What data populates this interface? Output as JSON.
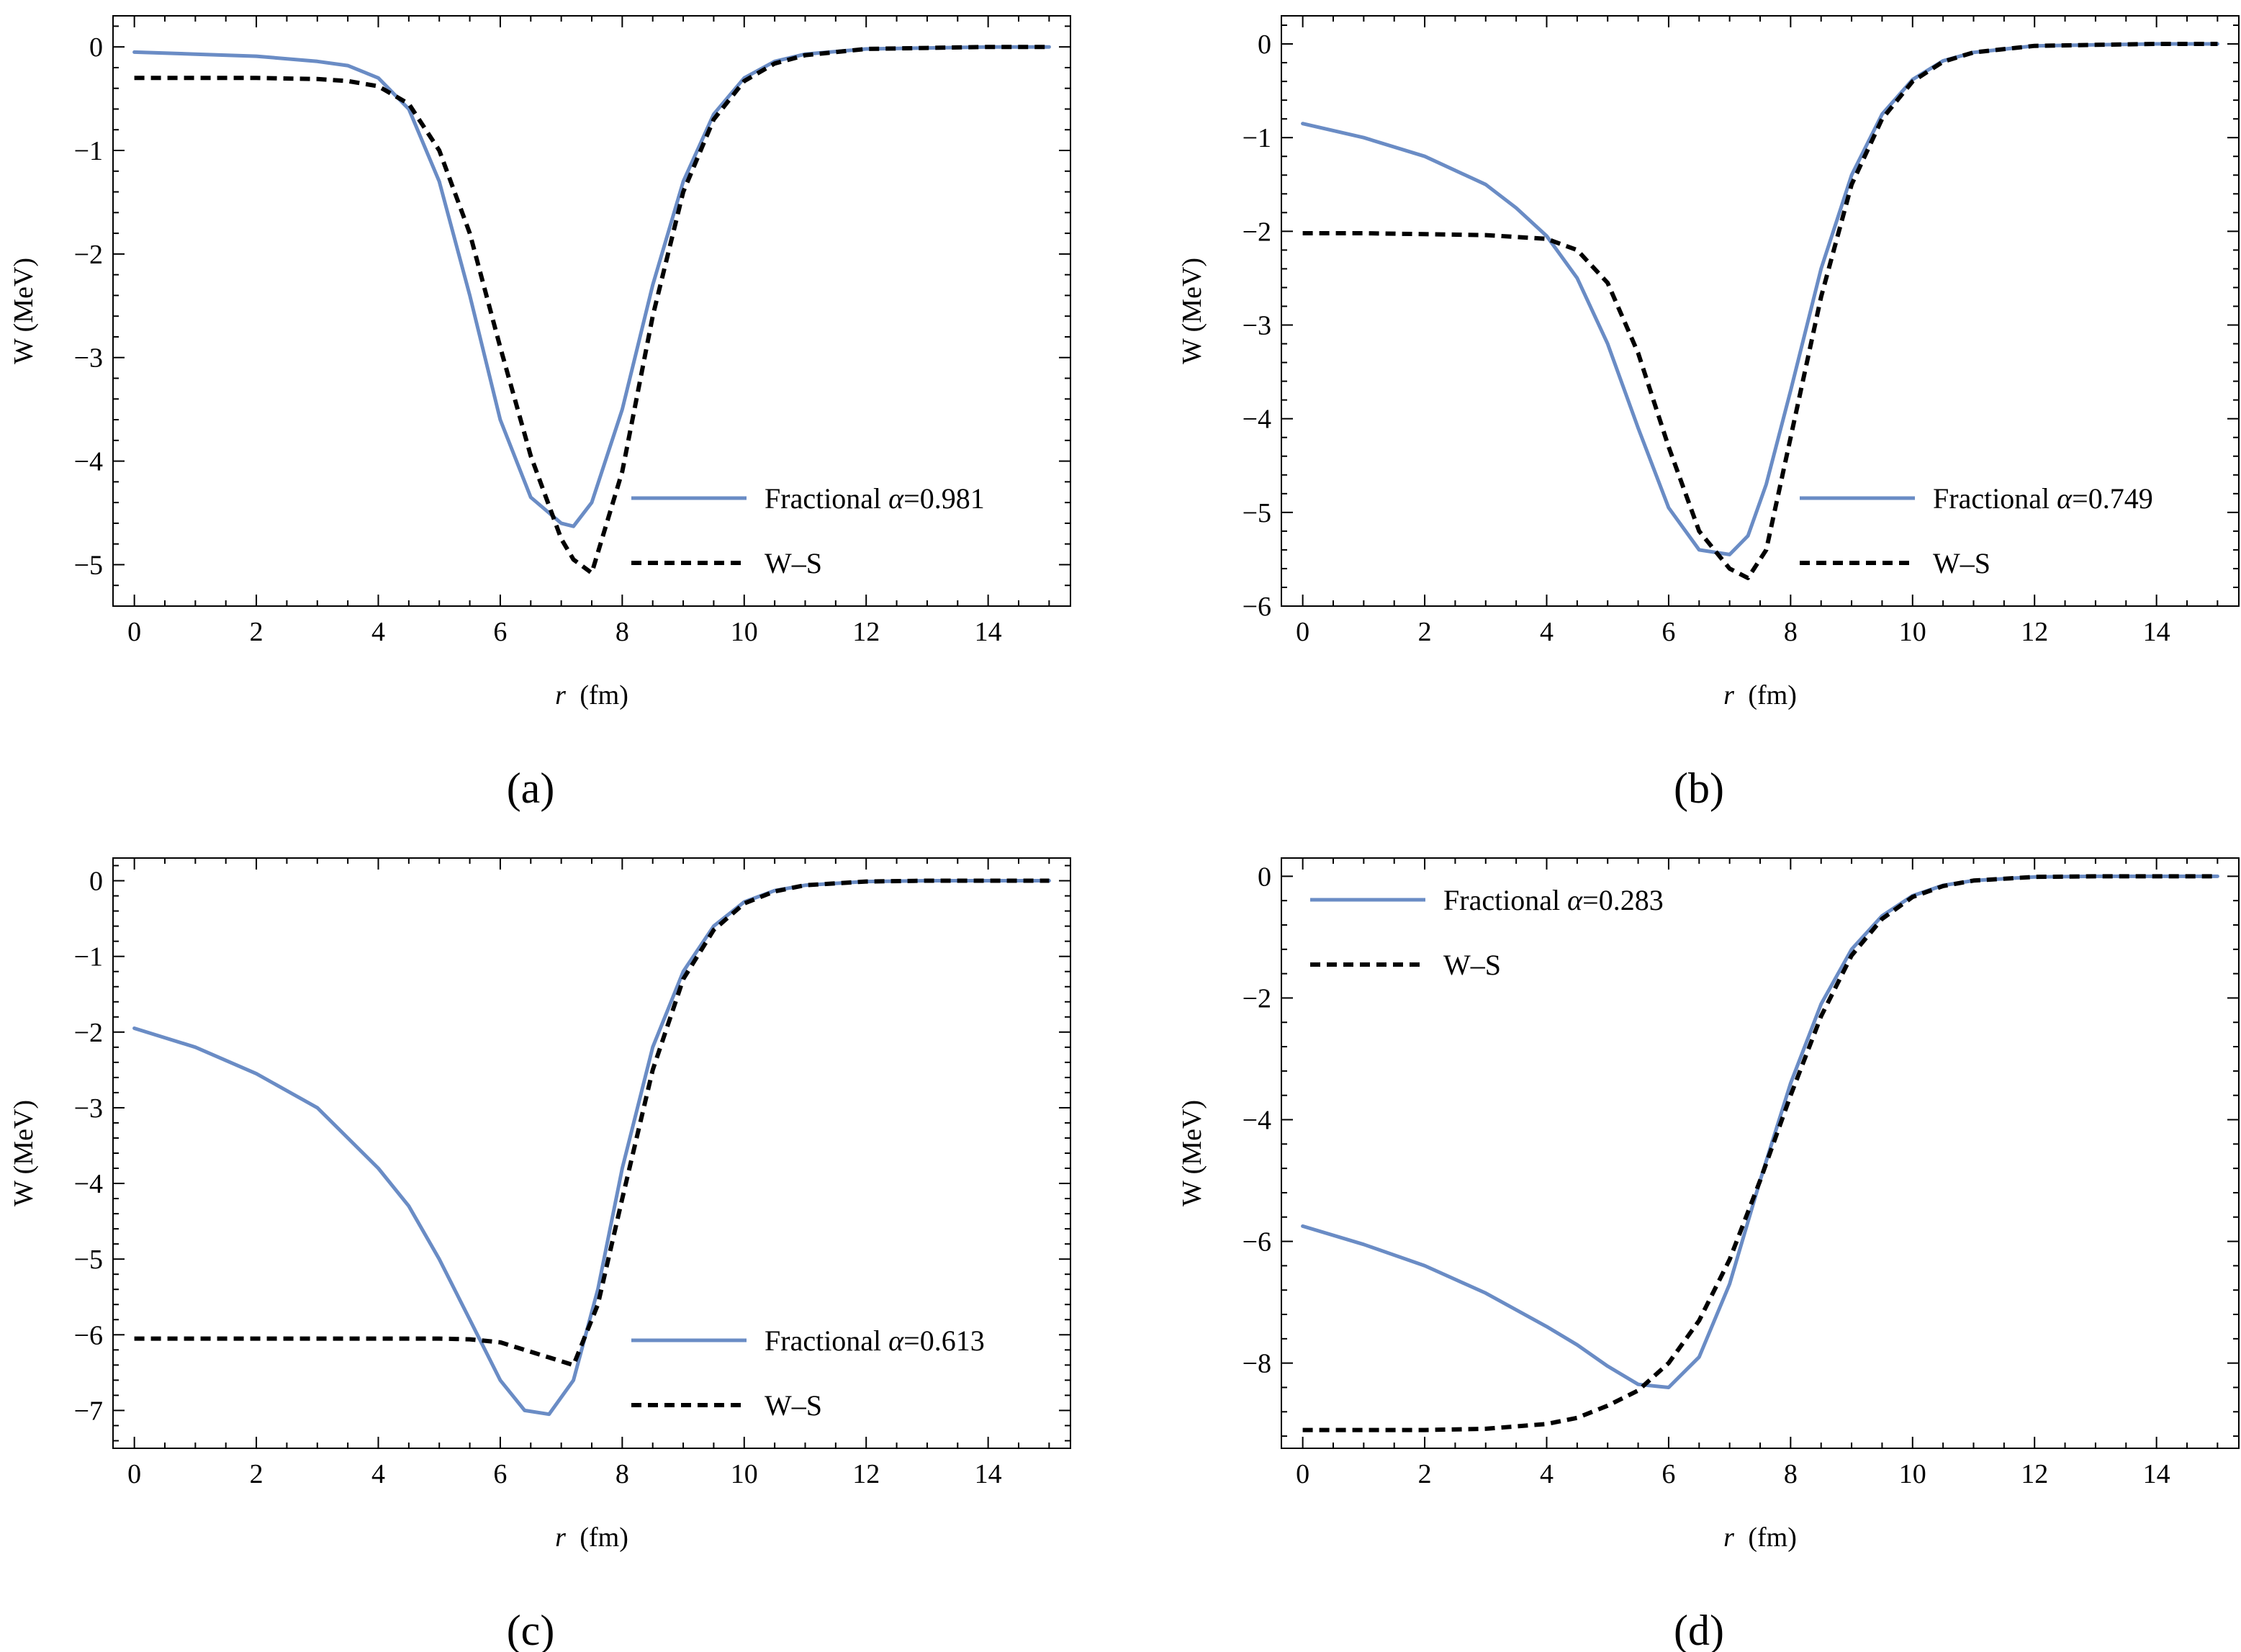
{
  "figure": {
    "colors": {
      "fractional": "#6a8cc5",
      "ws": "#000000",
      "frame": "#000000"
    },
    "legend_symbol": "α",
    "legend_eq": "="
  },
  "chart_data": [
    {
      "type": "line",
      "panel_label": "(a)",
      "xlabel_var": "r",
      "xlabel_unit": "(fm)",
      "ylabel": "W (MeV)",
      "xlim": [
        -0.35,
        15.35
      ],
      "ylim": [
        -5.4,
        0.3
      ],
      "xticks": [
        0,
        2,
        4,
        6,
        8,
        10,
        12,
        14
      ],
      "yticks": [
        0,
        -1,
        -2,
        -3,
        -4,
        -5
      ],
      "legend": {
        "position": "bottom-right",
        "fractional_prefix": "Fractional",
        "alpha": "0.981",
        "ws_label": "W–S"
      },
      "x": [
        0,
        1,
        2,
        3,
        3.5,
        4,
        4.5,
        5,
        5.5,
        6,
        6.5,
        7,
        7.2,
        7.5,
        8,
        8.5,
        9,
        9.5,
        10,
        10.5,
        11,
        12,
        13,
        14,
        15
      ],
      "series": [
        {
          "name": "Fractional",
          "style": "solid",
          "values": [
            -0.05,
            -0.07,
            -0.09,
            -0.14,
            -0.18,
            -0.3,
            -0.6,
            -1.3,
            -2.4,
            -3.6,
            -4.35,
            -4.6,
            -4.63,
            -4.4,
            -3.5,
            -2.3,
            -1.3,
            -0.65,
            -0.3,
            -0.14,
            -0.07,
            -0.02,
            -0.01,
            0,
            0
          ]
        },
        {
          "name": "W–S",
          "style": "dashed",
          "values": [
            -0.3,
            -0.3,
            -0.3,
            -0.31,
            -0.33,
            -0.38,
            -0.55,
            -1.0,
            -1.8,
            -2.9,
            -3.95,
            -4.75,
            -4.95,
            -5.08,
            -4.1,
            -2.6,
            -1.4,
            -0.7,
            -0.33,
            -0.16,
            -0.08,
            -0.02,
            -0.01,
            0,
            0
          ]
        }
      ]
    },
    {
      "type": "line",
      "panel_label": "(b)",
      "xlabel_var": "r",
      "xlabel_unit": "(fm)",
      "ylabel": "W (MeV)",
      "xlim": [
        -0.35,
        15.35
      ],
      "ylim": [
        -6.0,
        0.3
      ],
      "xticks": [
        0,
        2,
        4,
        6,
        8,
        10,
        12,
        14
      ],
      "yticks": [
        0,
        -1,
        -2,
        -3,
        -4,
        -5,
        -6
      ],
      "legend": {
        "position": "bottom-right",
        "fractional_prefix": "Fractional",
        "alpha": "0.749",
        "ws_label": "W–S"
      },
      "x": [
        0,
        1,
        2,
        3,
        3.5,
        4,
        4.5,
        5,
        5.5,
        6,
        6.5,
        7,
        7.3,
        7.6,
        8,
        8.5,
        9,
        9.5,
        10,
        10.5,
        11,
        12,
        13,
        14,
        15
      ],
      "series": [
        {
          "name": "Fractional",
          "style": "solid",
          "values": [
            -0.85,
            -1.0,
            -1.2,
            -1.5,
            -1.75,
            -2.05,
            -2.5,
            -3.2,
            -4.1,
            -4.95,
            -5.4,
            -5.45,
            -5.25,
            -4.7,
            -3.7,
            -2.4,
            -1.4,
            -0.75,
            -0.38,
            -0.18,
            -0.09,
            -0.02,
            -0.01,
            0,
            0
          ]
        },
        {
          "name": "W–S",
          "style": "dashed",
          "values": [
            -2.02,
            -2.02,
            -2.03,
            -2.04,
            -2.06,
            -2.08,
            -2.2,
            -2.55,
            -3.3,
            -4.3,
            -5.2,
            -5.6,
            -5.7,
            -5.4,
            -4.2,
            -2.7,
            -1.5,
            -0.8,
            -0.4,
            -0.19,
            -0.09,
            -0.02,
            -0.01,
            0,
            0
          ]
        }
      ]
    },
    {
      "type": "line",
      "panel_label": "(c)",
      "xlabel_var": "r",
      "xlabel_unit": "(fm)",
      "ylabel": "W (MeV)",
      "xlim": [
        -0.35,
        15.35
      ],
      "ylim": [
        -7.5,
        0.3
      ],
      "xticks": [
        0,
        2,
        4,
        6,
        8,
        10,
        12,
        14
      ],
      "yticks": [
        0,
        -1,
        -2,
        -3,
        -4,
        -5,
        -6,
        -7
      ],
      "legend": {
        "position": "bottom-right",
        "fractional_prefix": "Fractional",
        "alpha": "0.613",
        "ws_label": "W–S"
      },
      "x": [
        0,
        1,
        2,
        3,
        4,
        4.5,
        5,
        5.5,
        6,
        6.4,
        6.8,
        7.2,
        7.6,
        8,
        8.5,
        9,
        9.5,
        10,
        10.5,
        11,
        12,
        13,
        14,
        15
      ],
      "series": [
        {
          "name": "Fractional",
          "style": "solid",
          "values": [
            -1.95,
            -2.2,
            -2.55,
            -3.0,
            -3.8,
            -4.3,
            -5.0,
            -5.8,
            -6.6,
            -7.0,
            -7.05,
            -6.6,
            -5.4,
            -3.8,
            -2.2,
            -1.2,
            -0.6,
            -0.28,
            -0.13,
            -0.06,
            -0.01,
            0,
            0,
            0
          ]
        },
        {
          "name": "W–S",
          "style": "dashed",
          "values": [
            -6.05,
            -6.05,
            -6.05,
            -6.05,
            -6.05,
            -6.05,
            -6.05,
            -6.06,
            -6.1,
            -6.2,
            -6.3,
            -6.4,
            -5.6,
            -4.2,
            -2.5,
            -1.3,
            -0.65,
            -0.3,
            -0.14,
            -0.06,
            -0.01,
            0,
            0,
            0
          ]
        }
      ]
    },
    {
      "type": "line",
      "panel_label": "(d)",
      "xlabel_var": "r",
      "xlabel_unit": "(fm)",
      "ylabel": "W (MeV)",
      "xlim": [
        -0.35,
        15.35
      ],
      "ylim": [
        -9.4,
        0.3
      ],
      "xticks": [
        0,
        2,
        4,
        6,
        8,
        10,
        12,
        14
      ],
      "yticks": [
        0,
        -2,
        -4,
        -6,
        -8
      ],
      "legend": {
        "position": "top-left",
        "fractional_prefix": "Fractional",
        "alpha": "0.283",
        "ws_label": "W–S"
      },
      "x": [
        0,
        1,
        2,
        3,
        4,
        4.5,
        5,
        5.5,
        6,
        6.5,
        7,
        7.5,
        8,
        8.5,
        9,
        9.5,
        10,
        10.5,
        11,
        12,
        13,
        14,
        15
      ],
      "series": [
        {
          "name": "Fractional",
          "style": "solid",
          "values": [
            -5.75,
            -6.05,
            -6.4,
            -6.85,
            -7.4,
            -7.7,
            -8.05,
            -8.35,
            -8.4,
            -7.9,
            -6.7,
            -5.0,
            -3.4,
            -2.1,
            -1.2,
            -0.65,
            -0.32,
            -0.15,
            -0.07,
            -0.01,
            0,
            0,
            0
          ]
        },
        {
          "name": "W–S",
          "style": "dashed",
          "values": [
            -9.1,
            -9.1,
            -9.1,
            -9.08,
            -9.0,
            -8.9,
            -8.7,
            -8.45,
            -8.0,
            -7.3,
            -6.3,
            -5.0,
            -3.6,
            -2.3,
            -1.3,
            -0.7,
            -0.34,
            -0.16,
            -0.07,
            -0.01,
            0,
            0,
            0
          ]
        }
      ]
    }
  ]
}
